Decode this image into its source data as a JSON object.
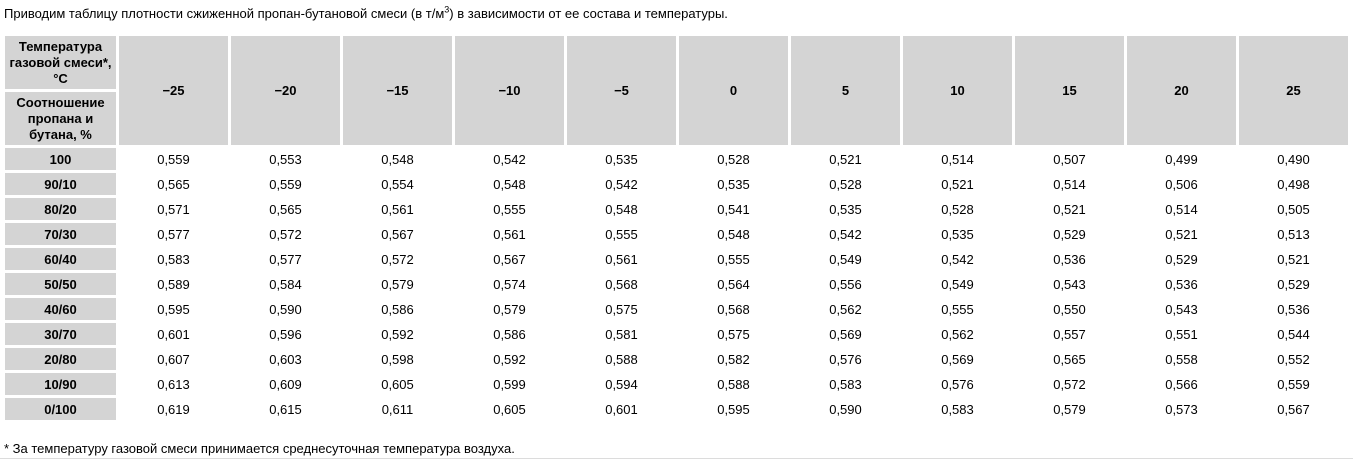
{
  "page": {
    "intro": {
      "before_sup": "Приводим таблицу плотности сжиженной пропан-бутановой смеси (в т/м",
      "sup": "3",
      "after_sup": ") в зависимости от ее состава и температуры."
    },
    "footnote": "* За температуру газовой смеси принимается среднесуточная температура воздуха."
  },
  "table": {
    "header": {
      "temp_label": "Температура газовой смеси*, °С",
      "ratio_label": "Соотношение пропана и бутана, %",
      "temps": [
        "−25",
        "−20",
        "−15",
        "−10",
        "−5",
        "0",
        "5",
        "10",
        "15",
        "20",
        "25"
      ]
    },
    "rows": [
      {
        "label": "100",
        "values": [
          "0,559",
          "0,553",
          "0,548",
          "0,542",
          "0,535",
          "0,528",
          "0,521",
          "0,514",
          "0,507",
          "0,499",
          "0,490"
        ]
      },
      {
        "label": "90/10",
        "values": [
          "0,565",
          "0,559",
          "0,554",
          "0,548",
          "0,542",
          "0,535",
          "0,528",
          "0,521",
          "0,514",
          "0,506",
          "0,498"
        ]
      },
      {
        "label": "80/20",
        "values": [
          "0,571",
          "0,565",
          "0,561",
          "0,555",
          "0,548",
          "0,541",
          "0,535",
          "0,528",
          "0,521",
          "0,514",
          "0,505"
        ]
      },
      {
        "label": "70/30",
        "values": [
          "0,577",
          "0,572",
          "0,567",
          "0,561",
          "0,555",
          "0,548",
          "0,542",
          "0,535",
          "0,529",
          "0,521",
          "0,513"
        ]
      },
      {
        "label": "60/40",
        "values": [
          "0,583",
          "0,577",
          "0,572",
          "0,567",
          "0,561",
          "0,555",
          "0,549",
          "0,542",
          "0,536",
          "0,529",
          "0,521"
        ]
      },
      {
        "label": "50/50",
        "values": [
          "0,589",
          "0,584",
          "0,579",
          "0,574",
          "0,568",
          "0,564",
          "0,556",
          "0,549",
          "0,543",
          "0,536",
          "0,529"
        ]
      },
      {
        "label": "40/60",
        "values": [
          "0,595",
          "0,590",
          "0,586",
          "0,579",
          "0,575",
          "0,568",
          "0,562",
          "0,555",
          "0,550",
          "0,543",
          "0,536"
        ]
      },
      {
        "label": "30/70",
        "values": [
          "0,601",
          "0,596",
          "0,592",
          "0,586",
          "0,581",
          "0,575",
          "0,569",
          "0,562",
          "0,557",
          "0,551",
          "0,544"
        ]
      },
      {
        "label": "20/80",
        "values": [
          "0,607",
          "0,603",
          "0,598",
          "0,592",
          "0,588",
          "0,582",
          "0,576",
          "0,569",
          "0,565",
          "0,558",
          "0,552"
        ]
      },
      {
        "label": "10/90",
        "values": [
          "0,613",
          "0,609",
          "0,605",
          "0,599",
          "0,594",
          "0,588",
          "0,583",
          "0,576",
          "0,572",
          "0,566",
          "0,559"
        ]
      },
      {
        "label": "0/100",
        "values": [
          "0,619",
          "0,615",
          "0,611",
          "0,605",
          "0,601",
          "0,595",
          "0,590",
          "0,583",
          "0,579",
          "0,573",
          "0,567"
        ]
      }
    ]
  },
  "colors": {
    "header_bg": "#d4d4d4",
    "page_bg": "#ffffff",
    "text": "#000000"
  }
}
